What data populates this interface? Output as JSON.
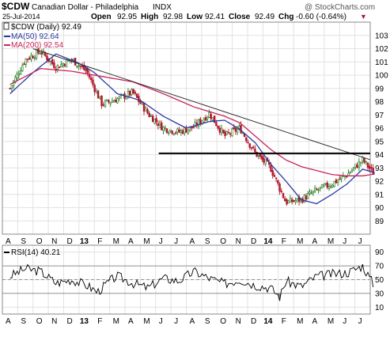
{
  "header": {
    "symbol": "$CDW",
    "name": "Canadian Dollar - Philadelphia",
    "index": "INDX",
    "watermark": "@ StockCharts.com",
    "date": "25-Jul-2014",
    "open_label": "Open",
    "open": "92.95",
    "high_label": "High",
    "high": "92.98",
    "low_label": "Low",
    "low": "92.41",
    "close_label": "Close",
    "close": "92.49",
    "chg_label": "Chg",
    "chg": "-0.60 (-0.64%)",
    "chg_arrow": "▼"
  },
  "legend": {
    "price_label": "$CDW (Daily) 92.49",
    "ma50_label": "MA(50) 92.64",
    "ma200_label": "MA(200) 92.54",
    "rsi_label": "RSI(14) 40.21"
  },
  "colors": {
    "up": "#1a7a1a",
    "down": "#b3172b",
    "ma50": "#2b3aa0",
    "ma200": "#c8245a",
    "rsi": "#000000",
    "grid": "#e2e2e2",
    "frame": "#888888",
    "trendline": "#333333",
    "support": "#000000"
  },
  "chart_data": [
    {
      "type": "candlestick",
      "title": "$CDW (Daily) 92.49",
      "ylim": [
        88,
        104
      ],
      "yticks": [
        89,
        90,
        91,
        92,
        93,
        94,
        95,
        96,
        97,
        98,
        99,
        100,
        101,
        102,
        103
      ],
      "x_tick_labels": [
        "A",
        "S",
        "O",
        "N",
        "D",
        "13",
        "F",
        "M",
        "A",
        "M",
        "J",
        "J",
        "A",
        "S",
        "O",
        "N",
        "D",
        "14",
        "F",
        "M",
        "A",
        "M",
        "J",
        "J"
      ],
      "x_range": [
        "2012-08",
        "2014-07"
      ],
      "price_path": [
        [
          0,
          99.0
        ],
        [
          1,
          101.2
        ],
        [
          2,
          101.8
        ],
        [
          3,
          100.6
        ],
        [
          4,
          101.2
        ],
        [
          5,
          100.3
        ],
        [
          6,
          97.8
        ],
        [
          7,
          98.2
        ],
        [
          8,
          98.7
        ],
        [
          9,
          97.1
        ],
        [
          10,
          96.0
        ],
        [
          11,
          95.7
        ],
        [
          12,
          96.1
        ],
        [
          13,
          97.1
        ],
        [
          14,
          95.4
        ],
        [
          15,
          96.0
        ],
        [
          16,
          94.1
        ],
        [
          17,
          93.0
        ],
        [
          18,
          90.4
        ],
        [
          19,
          90.6
        ],
        [
          20,
          91.3
        ],
        [
          21,
          91.8
        ],
        [
          22,
          92.5
        ],
        [
          23,
          93.6
        ],
        [
          23.8,
          92.49
        ]
      ],
      "series": [
        {
          "name": "MA(50)",
          "value_last": 92.64,
          "path": [
            [
              0,
              98.6
            ],
            [
              1.5,
              100.2
            ],
            [
              3,
              101.6
            ],
            [
              4.5,
              100.9
            ],
            [
              5.5,
              100.2
            ],
            [
              7,
              98.6
            ],
            [
              8.5,
              98.1
            ],
            [
              10,
              96.9
            ],
            [
              11.5,
              96.0
            ],
            [
              13,
              96.5
            ],
            [
              14,
              96.6
            ],
            [
              15,
              95.9
            ],
            [
              16,
              94.9
            ],
            [
              17,
              93.3
            ],
            [
              18,
              92.0
            ],
            [
              19,
              90.6
            ],
            [
              20,
              90.3
            ],
            [
              21,
              91.0
            ],
            [
              22,
              91.8
            ],
            [
              23,
              92.9
            ],
            [
              23.8,
              92.64
            ]
          ]
        },
        {
          "name": "MA(200)",
          "value_last": 92.54,
          "path": [
            [
              0,
              99.3
            ],
            [
              2,
              100.5
            ],
            [
              4,
              100.3
            ],
            [
              6,
              99.9
            ],
            [
              8,
              99.5
            ],
            [
              10,
              98.6
            ],
            [
              12,
              97.6
            ],
            [
              14,
              96.9
            ],
            [
              15,
              96.4
            ],
            [
              16,
              95.4
            ],
            [
              17,
              94.4
            ],
            [
              18,
              93.6
            ],
            [
              19,
              93.1
            ],
            [
              20,
              92.8
            ],
            [
              21,
              92.5
            ],
            [
              22,
              92.4
            ],
            [
              23,
              92.4
            ],
            [
              23.8,
              92.54
            ]
          ]
        }
      ],
      "annotations": [
        {
          "kind": "trendline",
          "from": [
            1.5,
            102.0
          ],
          "to": [
            23.8,
            93.5
          ]
        },
        {
          "kind": "support",
          "from": [
            9.7,
            94.1
          ],
          "to": [
            23.8,
            94.1
          ]
        }
      ]
    },
    {
      "type": "line",
      "title": "RSI(14) 40.21",
      "ylim": [
        0,
        100
      ],
      "yticks": [
        10,
        30,
        50,
        70,
        90
      ],
      "reference_lines": [
        30,
        50,
        70
      ],
      "x_tick_labels": [
        "A",
        "S",
        "O",
        "N",
        "D",
        "13",
        "F",
        "M",
        "A",
        "M",
        "J",
        "J",
        "A",
        "S",
        "O",
        "N",
        "D",
        "14",
        "F",
        "M",
        "A",
        "M",
        "J",
        "J"
      ],
      "series": [
        {
          "name": "RSI(14)",
          "value_last": 40.21,
          "path": [
            [
              0,
              55
            ],
            [
              1,
              66
            ],
            [
              2,
              62
            ],
            [
              3,
              45
            ],
            [
              4,
              50
            ],
            [
              5,
              42
            ],
            [
              5.7,
              32
            ],
            [
              6.5,
              48
            ],
            [
              7,
              55
            ],
            [
              8,
              45
            ],
            [
              9,
              38
            ],
            [
              10,
              52
            ],
            [
              11,
              48
            ],
            [
              12,
              62
            ],
            [
              13,
              52
            ],
            [
              14,
              44
            ],
            [
              15,
              50
            ],
            [
              16,
              42
            ],
            [
              17,
              38
            ],
            [
              17.6,
              25
            ],
            [
              18,
              48
            ],
            [
              19,
              40
            ],
            [
              20,
              55
            ],
            [
              21,
              58
            ],
            [
              22,
              60
            ],
            [
              23,
              70
            ],
            [
              23.8,
              40.21
            ]
          ]
        }
      ]
    }
  ]
}
